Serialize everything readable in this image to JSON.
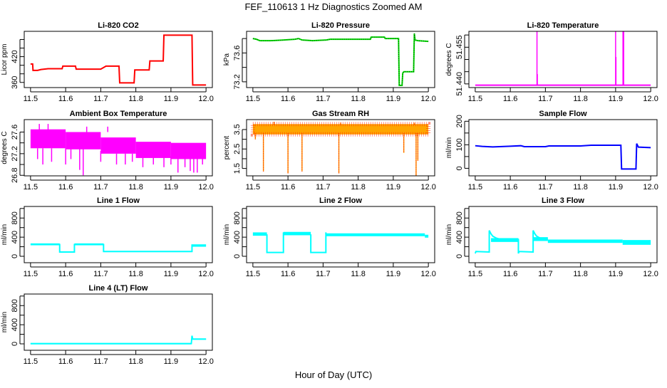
{
  "title": "FEF_110613  1 Hz Diagnostics Zoomed AM",
  "xlabel": "Hour of Day (UTC)",
  "chart_data": [
    {
      "type": "line",
      "title": "Li-820 CO2",
      "ylabel": "Licor ppm",
      "color": "#ff0000",
      "xlim": [
        11.482,
        12.018
      ],
      "ylim": [
        348,
        479
      ],
      "xticks": [
        11.5,
        11.6,
        11.7,
        11.8,
        11.9,
        12.0
      ],
      "xtick_labels": [
        "11.5",
        "11.6",
        "11.7",
        "11.8",
        "11.9",
        "12.0"
      ],
      "yticks": [
        360,
        380,
        400,
        420,
        440,
        460
      ],
      "ytick_labels": [
        "360",
        "",
        "",
        "420",
        "",
        ""
      ],
      "lines": [
        [
          [
            11.5,
            403
          ],
          [
            11.506,
            403
          ],
          [
            11.507,
            388
          ],
          [
            11.52,
            388
          ],
          [
            11.53,
            390
          ],
          [
            11.55,
            392
          ],
          [
            11.59,
            392
          ],
          [
            11.592,
            398
          ],
          [
            11.628,
            398
          ],
          [
            11.63,
            391
          ],
          [
            11.7,
            391
          ],
          [
            11.715,
            398
          ],
          [
            11.752,
            398
          ],
          [
            11.754,
            359
          ],
          [
            11.795,
            359
          ],
          [
            11.797,
            389
          ],
          [
            11.838,
            389
          ],
          [
            11.84,
            410
          ],
          [
            11.878,
            410
          ],
          [
            11.88,
            470
          ],
          [
            11.96,
            470
          ],
          [
            11.962,
            354
          ],
          [
            12.0,
            354
          ]
        ]
      ],
      "bands": [],
      "spikes": []
    },
    {
      "type": "line",
      "title": "Li-820 Pressure",
      "ylabel": "kPa",
      "color": "#00dd00",
      "xlim": [
        11.482,
        12.018
      ],
      "ylim": [
        73.12,
        73.9
      ],
      "xticks": [
        11.5,
        11.6,
        11.7,
        11.8,
        11.9,
        12.0
      ],
      "xtick_labels": [
        "11.5",
        "11.6",
        "11.7",
        "11.8",
        "11.9",
        "12.0"
      ],
      "yticks": [
        73.2,
        73.4,
        73.6,
        73.8
      ],
      "ytick_labels": [
        "73.2",
        "",
        "73.6",
        ""
      ],
      "lines": [
        [
          [
            11.5,
            73.8
          ],
          [
            11.51,
            73.79
          ],
          [
            11.52,
            73.77
          ],
          [
            11.55,
            73.77
          ],
          [
            11.59,
            73.78
          ],
          [
            11.62,
            73.79
          ],
          [
            11.63,
            73.8
          ],
          [
            11.64,
            73.78
          ],
          [
            11.67,
            73.77
          ],
          [
            11.71,
            73.78
          ],
          [
            11.72,
            73.79
          ],
          [
            11.835,
            73.79
          ],
          [
            11.837,
            73.82
          ],
          [
            11.875,
            73.82
          ],
          [
            11.877,
            73.8
          ],
          [
            11.915,
            73.8
          ],
          [
            11.917,
            73.15
          ],
          [
            11.925,
            73.15
          ],
          [
            11.927,
            73.32
          ],
          [
            11.93,
            73.34
          ],
          [
            11.958,
            73.34
          ],
          [
            11.96,
            73.87
          ],
          [
            11.962,
            73.78
          ],
          [
            11.97,
            73.77
          ],
          [
            12.0,
            73.76
          ]
        ]
      ],
      "bands": [],
      "spikes": []
    },
    {
      "type": "line",
      "title": "Li-820 Temperature",
      "ylabel": "degrees C",
      "color": "#ff00ff",
      "xlim": [
        11.482,
        12.018
      ],
      "ylim": [
        51.4385,
        51.4615
      ],
      "xticks": [
        11.5,
        11.6,
        11.7,
        11.8,
        11.9,
        12.0
      ],
      "xtick_labels": [
        "11.5",
        "11.6",
        "11.7",
        "11.8",
        "11.9",
        "12.0"
      ],
      "yticks": [
        51.44,
        51.445,
        51.45,
        51.455,
        51.46
      ],
      "ytick_labels": [
        "51.440",
        "",
        "",
        "51.455",
        ""
      ],
      "lines": [
        [
          [
            11.5,
            51.4395
          ],
          [
            12.0,
            51.4395
          ]
        ]
      ],
      "bands": [],
      "spikes": [
        [
          11.676,
          51.4395,
          51.47
        ],
        [
          11.677,
          51.4395,
          51.444
        ],
        [
          11.9,
          51.4395,
          51.47
        ],
        [
          11.901,
          51.4395,
          51.451
        ],
        [
          11.921,
          51.4395,
          51.47
        ],
        [
          11.923,
          51.4395,
          51.47
        ]
      ]
    },
    {
      "type": "line",
      "title": "Ambient Box Temperature",
      "ylabel": "degrees C",
      "color": "#ff00ff",
      "xlim": [
        11.482,
        12.018
      ],
      "ylim": [
        26.79,
        27.83
      ],
      "xticks": [
        11.5,
        11.6,
        11.7,
        11.8,
        11.9,
        12.0
      ],
      "xtick_labels": [
        "11.5",
        "11.6",
        "11.7",
        "11.8",
        "11.9",
        "12.0"
      ],
      "yticks": [
        26.8,
        27.0,
        27.2,
        27.4,
        27.6
      ],
      "ytick_labels": [
        "26.8",
        "",
        "27.2",
        "",
        "27.6"
      ],
      "lines": [],
      "bands": [
        [
          11.5,
          11.6,
          27.3,
          27.65
        ],
        [
          11.6,
          11.7,
          27.28,
          27.6
        ],
        [
          11.7,
          11.8,
          27.2,
          27.5
        ],
        [
          11.8,
          11.9,
          27.12,
          27.42
        ],
        [
          11.9,
          12.0,
          27.1,
          27.4
        ]
      ],
      "spikes": [
        [
          11.52,
          27.3,
          27.1
        ],
        [
          11.525,
          27.6,
          27.75
        ],
        [
          11.535,
          27.3,
          27.0
        ],
        [
          11.55,
          27.6,
          27.75
        ],
        [
          11.56,
          27.3,
          27.05
        ],
        [
          11.6,
          27.3,
          27.0
        ],
        [
          11.615,
          27.3,
          27.1
        ],
        [
          11.64,
          27.3,
          26.9
        ],
        [
          11.65,
          27.3,
          26.8
        ],
        [
          11.66,
          27.6,
          27.7
        ],
        [
          11.7,
          27.25,
          27.05
        ],
        [
          11.72,
          27.6,
          27.7
        ],
        [
          11.745,
          27.2,
          27.0
        ],
        [
          11.77,
          27.2,
          27.0
        ],
        [
          11.79,
          27.2,
          27.05
        ],
        [
          11.82,
          27.15,
          26.95
        ],
        [
          11.85,
          27.15,
          27.0
        ],
        [
          11.88,
          27.15,
          26.95
        ],
        [
          11.9,
          27.15,
          27.0
        ],
        [
          11.92,
          27.12,
          26.85
        ],
        [
          11.94,
          27.12,
          26.95
        ],
        [
          11.955,
          27.12,
          26.88
        ],
        [
          11.965,
          27.12,
          26.85
        ],
        [
          11.975,
          27.12,
          26.85
        ],
        [
          11.99,
          27.12,
          27.0
        ]
      ]
    },
    {
      "type": "line",
      "title": "Gas Stream RH",
      "ylabel": "percent",
      "color": "#ffa500",
      "xlim": [
        11.482,
        12.018
      ],
      "ylim": [
        1.12,
        4.01
      ],
      "xticks": [
        11.5,
        11.6,
        11.7,
        11.8,
        11.9,
        12.0
      ],
      "xtick_labels": [
        "11.5",
        "11.6",
        "11.7",
        "11.8",
        "11.9",
        "12.0"
      ],
      "yticks": [
        1.5,
        2.0,
        2.5,
        3.0,
        3.5
      ],
      "ytick_labels": [
        "1.5",
        "",
        "2.5",
        "",
        "3.5"
      ],
      "lines": [],
      "bands": [
        [
          11.5,
          12.0,
          3.25,
          3.78
        ]
      ],
      "spikes": [
        [
          11.507,
          3.3,
          3.0
        ],
        [
          11.53,
          3.3,
          1.35
        ],
        [
          11.6,
          3.3,
          1.25
        ],
        [
          11.64,
          3.3,
          1.35
        ],
        [
          11.745,
          3.3,
          1.25
        ],
        [
          11.93,
          3.3,
          2.3
        ],
        [
          11.965,
          3.3,
          1.1
        ],
        [
          11.97,
          3.3,
          1.9
        ],
        [
          11.56,
          3.75,
          3.9
        ],
        [
          11.75,
          3.75,
          3.85
        ],
        [
          11.96,
          3.75,
          3.85
        ]
      ]
    },
    {
      "type": "line",
      "title": "Sample Flow",
      "ylabel": "ml/min",
      "color": "#0000ff",
      "xlim": [
        11.482,
        12.018
      ],
      "ylim": [
        -32,
        207
      ],
      "xticks": [
        11.5,
        11.6,
        11.7,
        11.8,
        11.9,
        12.0
      ],
      "xtick_labels": [
        "11.5",
        "11.6",
        "11.7",
        "11.8",
        "11.9",
        "12.0"
      ],
      "yticks": [
        0,
        50,
        100,
        150,
        200
      ],
      "ytick_labels": [
        "0",
        "",
        "100",
        "",
        "200"
      ],
      "lines": [
        [
          [
            11.5,
            96
          ],
          [
            11.52,
            93
          ],
          [
            11.55,
            91
          ],
          [
            11.6,
            94
          ],
          [
            11.63,
            96
          ],
          [
            11.64,
            92
          ],
          [
            11.7,
            92
          ],
          [
            11.71,
            95
          ],
          [
            11.8,
            95
          ],
          [
            11.83,
            98
          ],
          [
            11.915,
            98
          ],
          [
            11.917,
            -3
          ],
          [
            11.958,
            -3
          ],
          [
            11.96,
            105
          ],
          [
            11.965,
            90
          ],
          [
            12.0,
            88
          ]
        ]
      ],
      "bands": [],
      "spikes": []
    },
    {
      "type": "line",
      "title": "Line 1 Flow",
      "ylabel": "ml/min",
      "color": "#00ffff",
      "xlim": [
        11.482,
        12.018
      ],
      "ylim": [
        -134,
        1042
      ],
      "xticks": [
        11.5,
        11.6,
        11.7,
        11.8,
        11.9,
        12.0
      ],
      "xtick_labels": [
        "11.5",
        "11.6",
        "11.7",
        "11.8",
        "11.9",
        "12.0"
      ],
      "yticks": [
        0,
        200,
        400,
        600,
        800,
        1000
      ],
      "ytick_labels": [
        "0",
        "",
        "400",
        "",
        "800",
        ""
      ],
      "lines": [
        [
          [
            11.583,
            260
          ],
          [
            11.583,
            90
          ],
          [
            11.625,
            90
          ],
          [
            11.625,
            260
          ]
        ],
        [
          [
            11.708,
            260
          ],
          [
            11.708,
            100
          ],
          [
            11.96,
            100
          ],
          [
            11.96,
            250
          ]
        ]
      ],
      "bands": [
        [
          11.5,
          11.583,
          230,
          270
        ],
        [
          11.625,
          11.708,
          230,
          270
        ],
        [
          11.708,
          11.96,
          95,
          110
        ],
        [
          11.96,
          12.0,
          200,
          250
        ]
      ],
      "spikes": []
    },
    {
      "type": "line",
      "title": "Line 2 Flow",
      "ylabel": "ml/min",
      "color": "#00ffff",
      "xlim": [
        11.482,
        12.018
      ],
      "ylim": [
        -134,
        1042
      ],
      "xticks": [
        11.5,
        11.6,
        11.7,
        11.8,
        11.9,
        12.0
      ],
      "xtick_labels": [
        "11.5",
        "11.6",
        "11.7",
        "11.8",
        "11.9",
        "12.0"
      ],
      "yticks": [
        0,
        200,
        400,
        600,
        800,
        1000
      ],
      "ytick_labels": [
        "0",
        "",
        "400",
        "",
        "800",
        ""
      ],
      "lines": [
        [
          [
            11.54,
            460
          ],
          [
            11.54,
            80
          ],
          [
            11.587,
            80
          ],
          [
            11.587,
            500
          ]
        ],
        [
          [
            11.665,
            460
          ],
          [
            11.665,
            80
          ],
          [
            11.708,
            80
          ],
          [
            11.708,
            500
          ]
        ]
      ],
      "bands": [
        [
          11.5,
          11.54,
          430,
          500
        ],
        [
          11.587,
          11.665,
          440,
          510
        ],
        [
          11.708,
          11.99,
          420,
          480
        ],
        [
          11.99,
          12.0,
          390,
          450
        ]
      ],
      "spikes": []
    },
    {
      "type": "line",
      "title": "Line 3 Flow",
      "ylabel": "ml/min",
      "color": "#00ffff",
      "xlim": [
        11.482,
        12.018
      ],
      "ylim": [
        -134,
        1042
      ],
      "xticks": [
        11.5,
        11.6,
        11.7,
        11.8,
        11.9,
        12.0
      ],
      "xtick_labels": [
        "11.5",
        "11.6",
        "11.7",
        "11.8",
        "11.9",
        "12.0"
      ],
      "yticks": [
        0,
        200,
        400,
        600,
        800,
        1000
      ],
      "ytick_labels": [
        "0",
        "",
        "400",
        "",
        "800",
        ""
      ],
      "lines": [
        [
          [
            11.5,
            60
          ],
          [
            11.502,
            100
          ],
          [
            11.54,
            90
          ],
          [
            11.54,
            540
          ],
          [
            11.545,
            470
          ],
          [
            11.55,
            420
          ],
          [
            11.56,
            380
          ],
          [
            11.57,
            360
          ],
          [
            11.623,
            350
          ],
          [
            11.623,
            60
          ],
          [
            11.625,
            100
          ],
          [
            11.665,
            90
          ],
          [
            11.665,
            540
          ],
          [
            11.67,
            470
          ],
          [
            11.675,
            420
          ],
          [
            11.685,
            380
          ],
          [
            11.7,
            360
          ],
          [
            11.707,
            350
          ]
        ]
      ],
      "bands": [
        [
          11.545,
          11.623,
          300,
          380
        ],
        [
          11.665,
          11.707,
          320,
          400
        ],
        [
          11.707,
          11.92,
          280,
          350
        ],
        [
          11.92,
          12.0,
          240,
          340
        ]
      ],
      "spikes": []
    },
    {
      "type": "line",
      "title": "Line 4 (LT) Flow",
      "ylabel": "ml/min",
      "color": "#00ffff",
      "xlim": [
        11.482,
        12.018
      ],
      "ylim": [
        -134,
        1042
      ],
      "xticks": [
        11.5,
        11.6,
        11.7,
        11.8,
        11.9,
        12.0
      ],
      "xtick_labels": [
        "11.5",
        "11.6",
        "11.7",
        "11.8",
        "11.9",
        "12.0"
      ],
      "yticks": [
        0,
        200,
        400,
        600,
        800,
        1000
      ],
      "ytick_labels": [
        "0",
        "",
        "400",
        "",
        "800",
        ""
      ],
      "lines": [
        [
          [
            11.5,
            5
          ],
          [
            11.958,
            5
          ],
          [
            11.96,
            170
          ],
          [
            11.962,
            100
          ],
          [
            12.0,
            100
          ]
        ]
      ],
      "bands": [
        [
          11.5,
          11.958,
          0,
          12
        ],
        [
          11.962,
          12.0,
          92,
          108
        ]
      ],
      "spikes": []
    }
  ]
}
